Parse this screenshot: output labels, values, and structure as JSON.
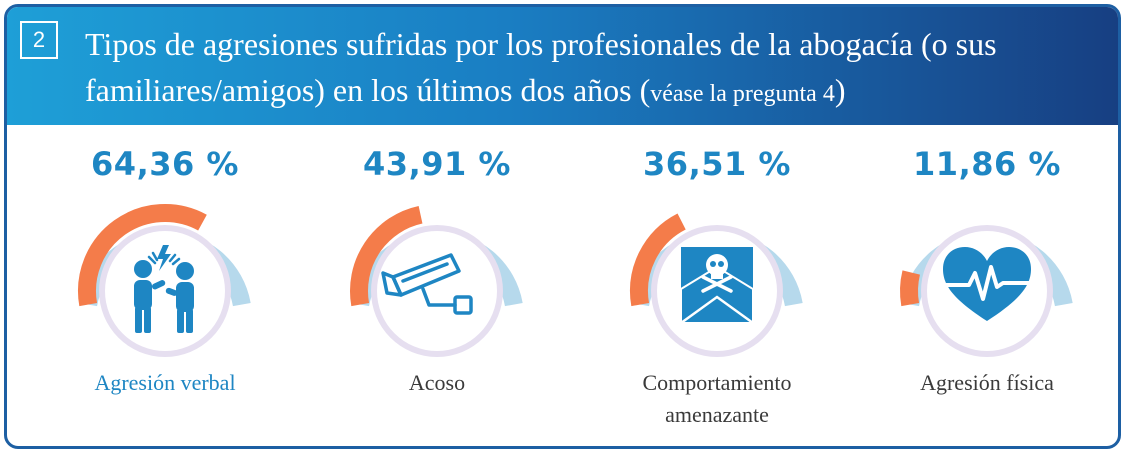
{
  "header": {
    "number": "2",
    "title_main": "Tipos de agresiones sufridas por los profesionales de la abogacía (o sus familiares/amigos) en los últimos dos años (",
    "title_note": "véase la pregunta 4",
    "title_close": ")"
  },
  "colors": {
    "accent_orange": "#f47c4a",
    "track_blue": "#b6d9ec",
    "icon_blue": "#1e86c3",
    "text_blue": "#1e86c3"
  },
  "chart_data": {
    "type": "gauge",
    "unit": "%",
    "categories": [
      "Agresión verbal",
      "Acoso",
      "Comportamiento amenazante",
      "Agresión física"
    ],
    "values": [
      64.36,
      43.91,
      36.51,
      11.86
    ],
    "value_labels": [
      "64,36 %",
      "43,91 %",
      "36,51 %",
      "11,86 %"
    ],
    "icons": [
      "arguing-people-icon",
      "surveillance-camera-icon",
      "skull-envelope-icon",
      "heartbeat-icon"
    ]
  },
  "items": [
    {
      "value": "64,36 %",
      "label": "Agresión verbal"
    },
    {
      "value": "43,91 %",
      "label": "Acoso"
    },
    {
      "value": "36,51 %",
      "label": "Comportamiento amenazante"
    },
    {
      "value": "11,86 %",
      "label": "Agresión física"
    }
  ]
}
